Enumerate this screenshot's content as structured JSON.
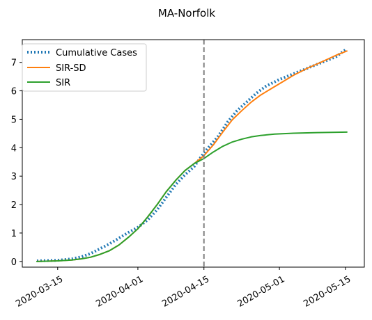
{
  "chart_data": {
    "type": "line",
    "title": "MA-Norfolk",
    "xlabel": "",
    "ylabel": "",
    "x_range_days": [
      -7.5,
      65
    ],
    "ylim": [
      -0.2,
      7.8
    ],
    "x_ticks": [
      {
        "label": "2020-03-15",
        "day": 0
      },
      {
        "label": "2020-04-01",
        "day": 17
      },
      {
        "label": "2020-04-15",
        "day": 31
      },
      {
        "label": "2020-05-01",
        "day": 47
      },
      {
        "label": "2020-05-15",
        "day": 61
      }
    ],
    "y_ticks": [
      0,
      1,
      2,
      3,
      4,
      5,
      6,
      7
    ],
    "vertical_marker_day": 31,
    "legend_position": "upper-left",
    "series": [
      {
        "name": "Cumulative Cases",
        "style": "dotted",
        "color": "#1f77b4",
        "points": [
          [
            -4.4,
            0.02
          ],
          [
            0,
            0.04
          ],
          [
            3,
            0.09
          ],
          [
            5,
            0.16
          ],
          [
            7,
            0.28
          ],
          [
            9,
            0.45
          ],
          [
            11,
            0.62
          ],
          [
            13,
            0.82
          ],
          [
            15,
            1.02
          ],
          [
            17,
            1.2
          ],
          [
            19,
            1.45
          ],
          [
            21,
            1.8
          ],
          [
            23,
            2.25
          ],
          [
            25,
            2.7
          ],
          [
            27,
            3.05
          ],
          [
            29,
            3.35
          ],
          [
            31,
            3.82
          ],
          [
            34,
            4.4
          ],
          [
            36,
            4.9
          ],
          [
            38,
            5.3
          ],
          [
            40,
            5.6
          ],
          [
            42,
            5.9
          ],
          [
            44,
            6.15
          ],
          [
            47,
            6.4
          ],
          [
            50,
            6.6
          ],
          [
            53,
            6.8
          ],
          [
            56,
            7.0
          ],
          [
            59,
            7.2
          ],
          [
            61.3,
            7.48
          ]
        ]
      },
      {
        "name": "SIR-SD",
        "style": "solid",
        "color": "#ff7f0e",
        "points": [
          [
            -4.4,
            0.0
          ],
          [
            0,
            0.02
          ],
          [
            3,
            0.05
          ],
          [
            5,
            0.09
          ],
          [
            7,
            0.15
          ],
          [
            9,
            0.25
          ],
          [
            11,
            0.38
          ],
          [
            13,
            0.58
          ],
          [
            15,
            0.85
          ],
          [
            17,
            1.15
          ],
          [
            19,
            1.55
          ],
          [
            21,
            1.98
          ],
          [
            23,
            2.45
          ],
          [
            25,
            2.85
          ],
          [
            27,
            3.2
          ],
          [
            29,
            3.45
          ],
          [
            31,
            3.72
          ],
          [
            33,
            4.1
          ],
          [
            35,
            4.55
          ],
          [
            37,
            4.98
          ],
          [
            39,
            5.3
          ],
          [
            41,
            5.6
          ],
          [
            43,
            5.85
          ],
          [
            45,
            6.05
          ],
          [
            47,
            6.25
          ],
          [
            50,
            6.55
          ],
          [
            53,
            6.8
          ],
          [
            56,
            7.02
          ],
          [
            59,
            7.25
          ],
          [
            61.3,
            7.4
          ]
        ]
      },
      {
        "name": "SIR",
        "style": "solid",
        "color": "#2ca02c",
        "points": [
          [
            -4.4,
            0.0
          ],
          [
            0,
            0.02
          ],
          [
            3,
            0.05
          ],
          [
            5,
            0.09
          ],
          [
            7,
            0.15
          ],
          [
            9,
            0.25
          ],
          [
            11,
            0.38
          ],
          [
            13,
            0.58
          ],
          [
            15,
            0.85
          ],
          [
            17,
            1.15
          ],
          [
            19,
            1.55
          ],
          [
            21,
            1.98
          ],
          [
            23,
            2.45
          ],
          [
            25,
            2.85
          ],
          [
            27,
            3.2
          ],
          [
            29,
            3.45
          ],
          [
            31,
            3.62
          ],
          [
            33,
            3.85
          ],
          [
            35,
            4.05
          ],
          [
            37,
            4.2
          ],
          [
            39,
            4.3
          ],
          [
            41,
            4.38
          ],
          [
            43,
            4.43
          ],
          [
            46,
            4.48
          ],
          [
            50,
            4.51
          ],
          [
            55,
            4.53
          ],
          [
            61.3,
            4.55
          ]
        ]
      }
    ]
  }
}
